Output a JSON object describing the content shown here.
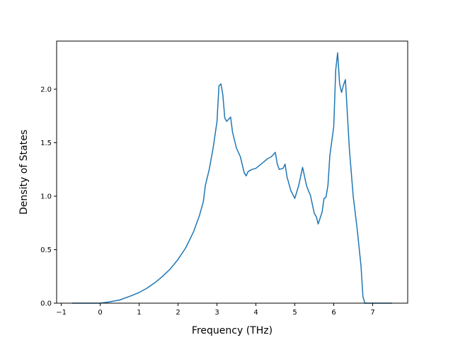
{
  "chart_data": {
    "type": "line",
    "title": "",
    "xlabel": "Frequency (THz)",
    "ylabel": "Density of States",
    "xlim": [
      -1.12,
      7.9
    ],
    "ylim": [
      0.0,
      2.45
    ],
    "grid": false,
    "x_ticks": [
      {
        "value": -1,
        "label": "−1"
      },
      {
        "value": 0,
        "label": "0"
      },
      {
        "value": 1,
        "label": "1"
      },
      {
        "value": 2,
        "label": "2"
      },
      {
        "value": 3,
        "label": "3"
      },
      {
        "value": 4,
        "label": "4"
      },
      {
        "value": 5,
        "label": "5"
      },
      {
        "value": 6,
        "label": "6"
      },
      {
        "value": 7,
        "label": "7"
      }
    ],
    "y_ticks": [
      {
        "value": 0.0,
        "label": "0.0"
      },
      {
        "value": 0.5,
        "label": "0.5"
      },
      {
        "value": 1.0,
        "label": "1.0"
      },
      {
        "value": 1.5,
        "label": "1.5"
      },
      {
        "value": 2.0,
        "label": "2.0"
      }
    ],
    "series": [
      {
        "color": "#1f77b4",
        "x": [
          -0.72,
          0.0,
          0.2,
          0.5,
          0.8,
          1.0,
          1.2,
          1.4,
          1.6,
          1.8,
          2.0,
          2.2,
          2.4,
          2.55,
          2.65,
          2.7,
          2.8,
          2.9,
          3.0,
          3.05,
          3.1,
          3.15,
          3.2,
          3.25,
          3.3,
          3.35,
          3.4,
          3.5,
          3.6,
          3.7,
          3.75,
          3.8,
          3.9,
          4.0,
          4.1,
          4.2,
          4.3,
          4.4,
          4.5,
          4.55,
          4.6,
          4.7,
          4.75,
          4.8,
          4.9,
          5.0,
          5.1,
          5.2,
          5.3,
          5.35,
          5.4,
          5.5,
          5.55,
          5.6,
          5.7,
          5.75,
          5.8,
          5.85,
          5.9,
          6.0,
          6.05,
          6.1,
          6.15,
          6.2,
          6.25,
          6.3,
          6.4,
          6.5,
          6.6,
          6.7,
          6.75,
          6.8,
          7.0,
          7.5
        ],
        "y": [
          0.0,
          0.0,
          0.01,
          0.03,
          0.07,
          0.1,
          0.14,
          0.19,
          0.25,
          0.32,
          0.41,
          0.52,
          0.67,
          0.82,
          0.95,
          1.1,
          1.25,
          1.45,
          1.7,
          2.03,
          2.05,
          1.95,
          1.73,
          1.7,
          1.72,
          1.74,
          1.6,
          1.45,
          1.37,
          1.22,
          1.19,
          1.23,
          1.25,
          1.26,
          1.29,
          1.32,
          1.35,
          1.37,
          1.41,
          1.3,
          1.25,
          1.26,
          1.3,
          1.18,
          1.05,
          0.98,
          1.1,
          1.27,
          1.1,
          1.05,
          1.01,
          0.84,
          0.81,
          0.74,
          0.85,
          0.98,
          0.99,
          1.1,
          1.38,
          1.65,
          2.18,
          2.34,
          2.05,
          1.97,
          2.04,
          2.09,
          1.45,
          1.0,
          0.7,
          0.35,
          0.06,
          0.0,
          0.0,
          0.0
        ]
      }
    ]
  }
}
